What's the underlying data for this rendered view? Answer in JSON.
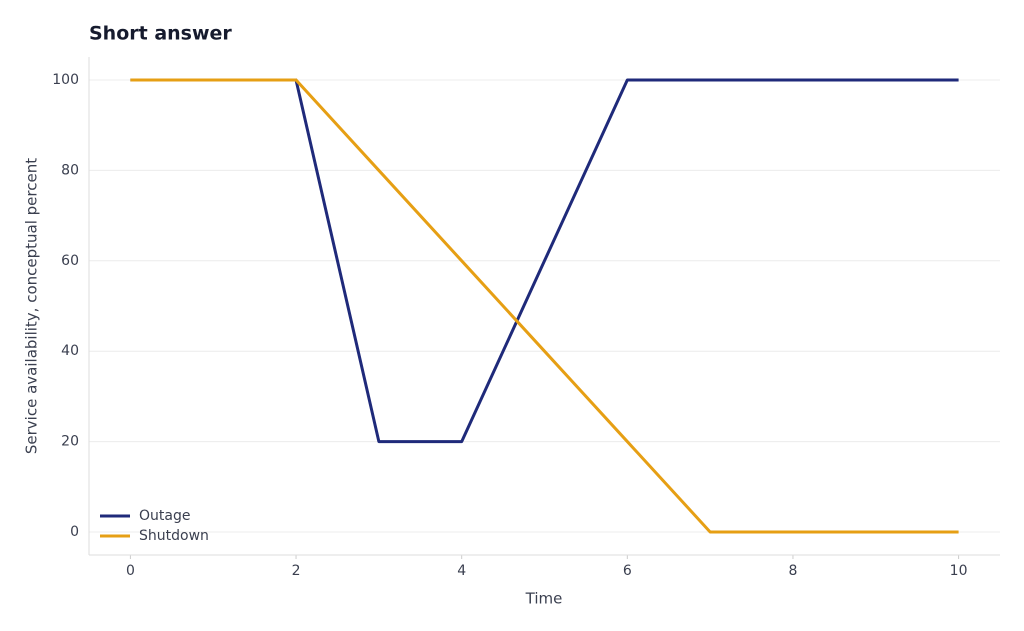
{
  "chart_data": {
    "type": "line",
    "title": "Short answer",
    "x_label": "Time",
    "y_label": "Service availability, conceptual percent",
    "x": [
      0,
      1,
      2,
      3,
      4,
      5,
      6,
      7,
      8,
      9,
      10
    ],
    "series": [
      {
        "name": "Outage",
        "color": "#1f2a7a",
        "values": [
          100,
          100,
          100,
          20,
          20,
          60,
          100,
          100,
          100,
          100,
          100
        ]
      },
      {
        "name": "Shutdown",
        "color": "#e69f14",
        "values": [
          100,
          100,
          100,
          80,
          60,
          40,
          20,
          0,
          0,
          0,
          0
        ]
      }
    ],
    "xlim": [
      -0.5,
      10.5
    ],
    "xticks": [
      0,
      2,
      4,
      6,
      8,
      10
    ],
    "ylim": [
      -5.1,
      105.1
    ],
    "yticks": [
      0,
      20,
      40,
      60,
      80,
      100
    ],
    "grid": true,
    "legend": "lower left"
  }
}
